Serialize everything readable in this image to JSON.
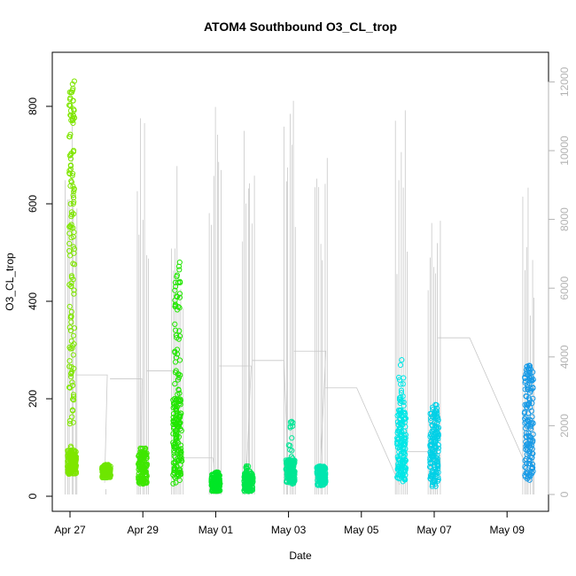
{
  "chart_data": {
    "type": "scatter",
    "title": "ATOM4 Southbound O3_CL_trop",
    "xlabel": "Date",
    "ylabel": "O3_CL_trop",
    "x_ticks": [
      "Apr 27",
      "Apr 29",
      "May 01",
      "May 03",
      "May 05",
      "May 07",
      "May 09"
    ],
    "x_range_days": [
      0,
      13
    ],
    "ylim": [
      0,
      900
    ],
    "y_ticks": [
      0,
      200,
      400,
      600,
      800
    ],
    "y2_ticks": [
      0,
      2000,
      4000,
      6000,
      8000,
      10000,
      12000
    ],
    "y2_range": [
      0,
      12500
    ],
    "colors": {
      "axis": "#000000",
      "secondary_axis": "#b3b3b3",
      "altitude_line": "#c8c8c8"
    },
    "flights": [
      {
        "day": 0.05,
        "ymin": 45,
        "ymax": 860,
        "core_min": 45,
        "core_max": 95,
        "color": "#7fe600",
        "alt_max": 12000
      },
      {
        "day": 1.0,
        "ymin": 38,
        "ymax": 65,
        "core_min": 38,
        "core_max": 62,
        "color": "#6ee600",
        "alt_max": 200
      },
      {
        "day": 2.0,
        "ymin": 20,
        "ymax": 100,
        "core_min": 25,
        "core_max": 90,
        "color": "#3fe600",
        "alt_max": 11600
      },
      {
        "day": 2.95,
        "ymin": 20,
        "ymax": 490,
        "core_min": 25,
        "core_max": 200,
        "color": "#22e600",
        "alt_max": 9800
      },
      {
        "day": 4.0,
        "ymin": 10,
        "ymax": 50,
        "core_min": 10,
        "core_max": 45,
        "color": "#00e626",
        "alt_max": 12100
      },
      {
        "day": 4.9,
        "ymin": 8,
        "ymax": 62,
        "core_min": 10,
        "core_max": 48,
        "color": "#00e64b",
        "alt_max": 10800
      },
      {
        "day": 6.05,
        "ymin": 25,
        "ymax": 155,
        "core_min": 25,
        "core_max": 75,
        "color": "#00e696",
        "alt_max": 11800
      },
      {
        "day": 6.9,
        "ymin": 20,
        "ymax": 62,
        "core_min": 22,
        "core_max": 60,
        "color": "#00e6b0",
        "alt_max": 9800
      },
      {
        "day": 9.1,
        "ymin": 30,
        "ymax": 285,
        "core_min": 30,
        "core_max": 180,
        "color": "#00e6e6",
        "alt_max": 11600
      },
      {
        "day": 10.0,
        "ymin": 18,
        "ymax": 190,
        "core_min": 20,
        "core_max": 170,
        "color": "#00d0e6",
        "alt_max": 9200
      },
      {
        "day": 12.6,
        "ymin": 25,
        "ymax": 270,
        "core_min": 30,
        "core_max": 260,
        "color": "#1a9be6",
        "alt_max": 9400
      }
    ]
  }
}
